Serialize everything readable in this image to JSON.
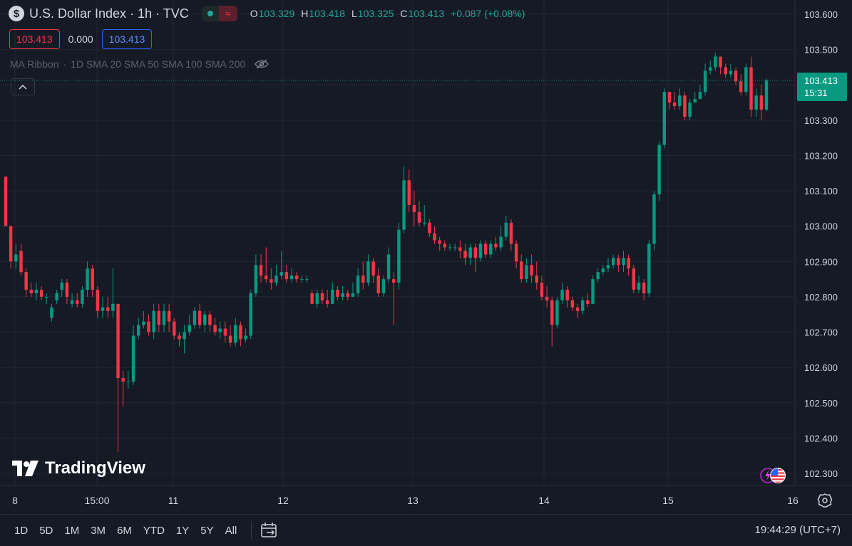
{
  "header": {
    "symbol_badge": "$",
    "title": "U.S. Dollar Index · 1h · TVC",
    "status_wave": "≈",
    "ohlc": {
      "o_label": "O",
      "o_value": "103.329",
      "h_label": "H",
      "h_value": "103.418",
      "l_label": "L",
      "l_value": "103.325",
      "c_label": "C",
      "c_value": "103.413",
      "change": "+0.087 (+0.08%)"
    }
  },
  "trade_boxes": {
    "sell": "103.413",
    "spread": "0.000",
    "buy": "103.413"
  },
  "indicator": {
    "name": "MA Ribbon",
    "params": "1D SMA 20 SMA 50 SMA 100 SMA 200"
  },
  "last_price": {
    "price": "103.413",
    "countdown": "15:31"
  },
  "watermark": "TradingView",
  "bottom": {
    "ranges": [
      "1D",
      "5D",
      "1M",
      "3M",
      "6M",
      "YTD",
      "1Y",
      "5Y",
      "All"
    ],
    "clock": "19:44:29 (UTC+7)"
  },
  "colors": {
    "up": "#089981",
    "down": "#f23645",
    "background": "#161a25",
    "grid": "#262a35"
  },
  "chart_data": {
    "type": "candlestick",
    "y_axis": {
      "range": [
        102.24,
        103.64
      ],
      "tick_labels": [
        "103.600",
        "103.500",
        "103.400",
        "103.300",
        "103.200",
        "103.100",
        "103.000",
        "102.900",
        "102.800",
        "102.700",
        "102.600",
        "102.500",
        "102.400",
        "102.300"
      ]
    },
    "x_axis": {
      "tick_labels": [
        "8",
        "15:00",
        "11",
        "12",
        "13",
        "14",
        "15",
        "16"
      ]
    },
    "grid": true,
    "candles": [
      [
        103.14,
        103.0,
        103.14,
        103.1
      ],
      [
        103.0,
        102.9,
        102.92,
        102.88
      ],
      [
        102.9,
        102.92,
        102.95,
        102.88
      ],
      [
        102.93,
        102.87,
        102.95,
        102.86
      ],
      [
        102.87,
        102.82,
        102.88,
        102.8
      ],
      [
        102.82,
        102.81,
        102.84,
        102.8
      ],
      [
        102.81,
        102.82,
        102.84,
        102.79
      ],
      [
        102.82,
        102.8,
        102.83,
        102.79
      ],
      [
        102.8,
        102.8,
        102.81,
        102.78
      ],
      [
        102.74,
        102.77,
        102.78,
        102.73
      ],
      [
        102.79,
        102.81,
        102.82,
        102.78
      ],
      [
        102.82,
        102.84,
        102.85,
        102.8
      ],
      [
        102.84,
        102.8,
        102.85,
        102.78
      ],
      [
        102.78,
        102.79,
        102.81,
        102.77
      ],
      [
        102.79,
        102.78,
        102.81,
        102.77
      ],
      [
        102.78,
        102.82,
        102.83,
        102.77
      ],
      [
        102.82,
        102.88,
        102.9,
        102.8
      ],
      [
        102.88,
        102.82,
        102.89,
        102.8
      ],
      [
        102.82,
        102.76,
        102.83,
        102.74
      ],
      [
        102.76,
        102.77,
        102.8,
        102.74
      ],
      [
        102.77,
        102.76,
        102.8,
        102.74
      ],
      [
        102.76,
        102.78,
        102.88,
        102.74
      ],
      [
        102.78,
        102.57,
        102.78,
        102.36
      ],
      [
        102.57,
        102.56,
        102.59,
        102.49
      ],
      [
        102.56,
        102.56,
        102.59,
        102.54
      ],
      [
        102.56,
        102.69,
        102.72,
        102.55
      ],
      [
        102.69,
        102.72,
        102.74,
        102.68
      ],
      [
        102.72,
        102.73,
        102.76,
        102.71
      ],
      [
        102.73,
        102.7,
        102.75,
        102.69
      ],
      [
        102.7,
        102.76,
        102.78,
        102.68
      ],
      [
        102.76,
        102.72,
        102.78,
        102.7
      ],
      [
        102.72,
        102.76,
        102.78,
        102.7
      ],
      [
        102.76,
        102.73,
        102.78,
        102.7
      ],
      [
        102.73,
        102.69,
        102.74,
        102.68
      ],
      [
        102.69,
        102.68,
        102.7,
        102.66
      ],
      [
        102.68,
        102.7,
        102.72,
        102.64
      ],
      [
        102.7,
        102.72,
        102.75,
        102.69
      ],
      [
        102.72,
        102.76,
        102.77,
        102.71
      ],
      [
        102.76,
        102.72,
        102.78,
        102.71
      ],
      [
        102.72,
        102.75,
        102.76,
        102.7
      ],
      [
        102.75,
        102.72,
        102.76,
        102.7
      ],
      [
        102.72,
        102.7,
        102.74,
        102.69
      ],
      [
        102.7,
        102.71,
        102.73,
        102.68
      ],
      [
        102.71,
        102.69,
        102.73,
        102.67
      ],
      [
        102.69,
        102.67,
        102.72,
        102.66
      ],
      [
        102.67,
        102.72,
        102.74,
        102.66
      ],
      [
        102.72,
        102.68,
        102.73,
        102.66
      ],
      [
        102.68,
        102.69,
        102.71,
        102.67
      ],
      [
        102.69,
        102.81,
        102.82,
        102.68
      ],
      [
        102.81,
        102.89,
        102.92,
        102.8
      ],
      [
        102.89,
        102.86,
        102.92,
        102.84
      ],
      [
        102.86,
        102.85,
        102.94,
        102.84
      ],
      [
        102.85,
        102.84,
        102.88,
        102.82
      ],
      [
        102.84,
        102.86,
        102.89,
        102.83
      ],
      [
        102.86,
        102.87,
        102.93,
        102.85
      ],
      [
        102.87,
        102.85,
        102.89,
        102.84
      ],
      [
        102.85,
        102.86,
        102.88,
        102.84
      ],
      [
        102.86,
        102.85,
        102.87,
        102.84
      ],
      [
        102.85,
        102.85,
        102.86,
        102.84
      ],
      [
        102.85,
        102.85,
        102.86,
        102.84
      ],
      [
        102.81,
        102.78,
        102.82,
        102.78
      ],
      [
        102.78,
        102.81,
        102.82,
        102.77
      ],
      [
        102.81,
        102.79,
        102.82,
        102.78
      ],
      [
        102.79,
        102.78,
        102.82,
        102.77
      ],
      [
        102.78,
        102.82,
        102.84,
        102.78
      ],
      [
        102.82,
        102.8,
        102.83,
        102.79
      ],
      [
        102.8,
        102.81,
        102.83,
        102.79
      ],
      [
        102.81,
        102.8,
        102.82,
        102.79
      ],
      [
        102.8,
        102.81,
        102.84,
        102.8
      ],
      [
        102.81,
        102.86,
        102.88,
        102.8
      ],
      [
        102.86,
        102.84,
        102.9,
        102.82
      ],
      [
        102.84,
        102.9,
        102.92,
        102.83
      ],
      [
        102.9,
        102.86,
        102.91,
        102.84
      ],
      [
        102.86,
        102.81,
        102.88,
        102.8
      ],
      [
        102.81,
        102.85,
        102.86,
        102.8
      ],
      [
        102.85,
        102.92,
        102.94,
        102.84
      ],
      [
        102.85,
        102.84,
        102.87,
        102.72
      ],
      [
        102.84,
        102.99,
        103.01,
        102.82
      ],
      [
        102.99,
        103.13,
        103.17,
        102.98
      ],
      [
        103.13,
        103.06,
        103.16,
        103.04
      ],
      [
        103.06,
        103.04,
        103.1,
        103.0
      ],
      [
        103.04,
        103.01,
        103.07,
        103.0
      ],
      [
        103.01,
        103.01,
        103.06,
        103.0
      ],
      [
        103.01,
        102.98,
        103.02,
        102.97
      ],
      [
        102.98,
        102.96,
        103.0,
        102.95
      ],
      [
        102.96,
        102.95,
        102.97,
        102.93
      ],
      [
        102.95,
        102.94,
        102.96,
        102.93
      ],
      [
        102.94,
        102.94,
        102.95,
        102.93
      ],
      [
        102.94,
        102.94,
        102.95,
        102.93
      ],
      [
        102.94,
        102.93,
        102.96,
        102.91
      ],
      [
        102.93,
        102.91,
        102.95,
        102.89
      ],
      [
        102.91,
        102.94,
        102.95,
        102.89
      ],
      [
        102.94,
        102.91,
        102.95,
        102.87
      ],
      [
        102.91,
        102.95,
        102.96,
        102.9
      ],
      [
        102.95,
        102.92,
        102.96,
        102.91
      ],
      [
        102.92,
        102.95,
        102.96,
        102.91
      ],
      [
        102.95,
        102.94,
        102.97,
        102.93
      ],
      [
        102.94,
        102.97,
        103.0,
        102.93
      ],
      [
        102.97,
        103.01,
        103.03,
        102.96
      ],
      [
        103.01,
        102.95,
        103.02,
        102.93
      ],
      [
        102.95,
        102.9,
        102.96,
        102.88
      ],
      [
        102.9,
        102.85,
        102.92,
        102.84
      ],
      [
        102.85,
        102.89,
        102.91,
        102.84
      ],
      [
        102.89,
        102.86,
        102.92,
        102.84
      ],
      [
        102.86,
        102.84,
        102.9,
        102.82
      ],
      [
        102.84,
        102.8,
        102.86,
        102.79
      ],
      [
        102.8,
        102.79,
        102.83,
        102.77
      ],
      [
        102.79,
        102.72,
        102.8,
        102.66
      ],
      [
        102.72,
        102.79,
        102.8,
        102.71
      ],
      [
        102.79,
        102.82,
        102.84,
        102.78
      ],
      [
        102.82,
        102.79,
        102.83,
        102.77
      ],
      [
        102.79,
        102.77,
        102.8,
        102.76
      ],
      [
        102.77,
        102.76,
        102.78,
        102.74
      ],
      [
        102.76,
        102.79,
        102.8,
        102.75
      ],
      [
        102.79,
        102.78,
        102.81,
        102.77
      ],
      [
        102.78,
        102.85,
        102.86,
        102.78
      ],
      [
        102.85,
        102.87,
        102.88,
        102.84
      ],
      [
        102.87,
        102.88,
        102.89,
        102.86
      ],
      [
        102.88,
        102.89,
        102.91,
        102.87
      ],
      [
        102.89,
        102.91,
        102.92,
        102.88
      ],
      [
        102.91,
        102.89,
        102.92,
        102.87
      ],
      [
        102.89,
        102.91,
        102.93,
        102.87
      ],
      [
        102.91,
        102.88,
        102.92,
        102.86
      ],
      [
        102.88,
        102.82,
        102.89,
        102.81
      ],
      [
        102.82,
        102.84,
        102.86,
        102.81
      ],
      [
        102.84,
        102.81,
        102.85,
        102.79
      ],
      [
        102.81,
        102.95,
        102.96,
        102.8
      ],
      [
        102.95,
        103.09,
        103.1,
        102.93
      ],
      [
        103.09,
        103.23,
        103.24,
        103.07
      ],
      [
        103.23,
        103.38,
        103.39,
        103.22
      ],
      [
        103.38,
        103.35,
        103.38,
        103.33
      ],
      [
        103.35,
        103.34,
        103.38,
        103.33
      ],
      [
        103.34,
        103.37,
        103.39,
        103.33
      ],
      [
        103.37,
        103.31,
        103.38,
        103.3
      ],
      [
        103.31,
        103.35,
        103.36,
        103.3
      ],
      [
        103.35,
        103.36,
        103.38,
        103.35
      ],
      [
        103.36,
        103.38,
        103.4,
        103.36
      ],
      [
        103.38,
        103.44,
        103.46,
        103.37
      ],
      [
        103.44,
        103.45,
        103.47,
        103.43
      ],
      [
        103.45,
        103.48,
        103.49,
        103.44
      ],
      [
        103.48,
        103.45,
        103.48,
        103.43
      ],
      [
        103.45,
        103.43,
        103.46,
        103.42
      ],
      [
        103.43,
        103.44,
        103.46,
        103.42
      ],
      [
        103.44,
        103.41,
        103.45,
        103.4
      ],
      [
        103.41,
        103.38,
        103.43,
        103.37
      ],
      [
        103.38,
        103.45,
        103.46,
        103.37
      ],
      [
        103.45,
        103.33,
        103.48,
        103.31
      ],
      [
        103.33,
        103.37,
        103.39,
        103.31
      ],
      [
        103.37,
        103.33,
        103.4,
        103.3
      ],
      [
        103.33,
        103.413,
        103.418,
        103.325
      ]
    ]
  }
}
